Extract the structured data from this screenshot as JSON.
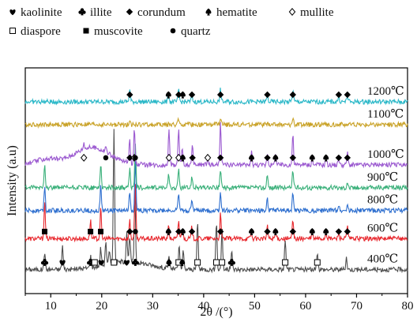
{
  "chart_data": {
    "type": "line",
    "xlabel": "2θ /(°)",
    "ylabel": "Intensity (a.u)",
    "xlim": [
      5,
      80
    ],
    "x_ticks": [
      10,
      20,
      30,
      40,
      50,
      60,
      70,
      80
    ],
    "legend": {
      "placement": "top",
      "entries": [
        {
          "symbol": "heart-marker",
          "label": "kaolinite"
        },
        {
          "symbol": "club-marker",
          "label": "illite"
        },
        {
          "symbol": "diamond-filled-marker",
          "label": "corundum"
        },
        {
          "symbol": "spade-marker",
          "label": "hematite"
        },
        {
          "symbol": "diamond-open-marker",
          "label": "mullite"
        },
        {
          "symbol": "square-open-marker",
          "label": "diaspore"
        },
        {
          "symbol": "square-filled-marker",
          "label": "muscovite"
        },
        {
          "symbol": "circle-filled-marker",
          "label": "quartz"
        }
      ]
    },
    "series": [
      {
        "name": "400℃",
        "color": "#4d4d4d",
        "baseline": 0.5,
        "peaks": [
          [
            8.8,
            3
          ],
          [
            12.3,
            4
          ],
          [
            17.8,
            2
          ],
          [
            19.8,
            3
          ],
          [
            20.8,
            4
          ],
          [
            21.5,
            2
          ],
          [
            22.4,
            22
          ],
          [
            24.9,
            5
          ],
          [
            25.5,
            4
          ],
          [
            26.5,
            11
          ],
          [
            33.2,
            2
          ],
          [
            35.2,
            4
          ],
          [
            36.0,
            3
          ],
          [
            38.8,
            8
          ],
          [
            42.5,
            8
          ],
          [
            43.6,
            7
          ],
          [
            45.5,
            3
          ],
          [
            56.0,
            5
          ],
          [
            62.3,
            3
          ],
          [
            68.0,
            2
          ]
        ]
      },
      {
        "name": "600℃",
        "color": "#e8282e",
        "baseline": 2.8,
        "peaks": [
          [
            8.8,
            6
          ],
          [
            17.8,
            3
          ],
          [
            19.8,
            5
          ],
          [
            25.5,
            3
          ],
          [
            26.6,
            9
          ],
          [
            33.1,
            2
          ],
          [
            35.1,
            3
          ],
          [
            35.8,
            2
          ],
          [
            37.7,
            2
          ],
          [
            43.3,
            4
          ],
          [
            49.3,
            1
          ],
          [
            52.5,
            2
          ],
          [
            54.1,
            1
          ],
          [
            57.5,
            3
          ],
          [
            61.3,
            1
          ],
          [
            64.0,
            1
          ],
          [
            66.5,
            1
          ],
          [
            68.2,
            2
          ]
        ]
      },
      {
        "name": "800℃",
        "color": "#2e6fcf",
        "baseline": 4.9,
        "peaks": [
          [
            8.8,
            4
          ],
          [
            19.8,
            4
          ],
          [
            25.5,
            3
          ],
          [
            26.6,
            8
          ],
          [
            35.1,
            3
          ],
          [
            37.7,
            2
          ],
          [
            43.3,
            3
          ],
          [
            52.5,
            2
          ],
          [
            57.5,
            3
          ],
          [
            66.5,
            1
          ],
          [
            68.2,
            1
          ]
        ]
      },
      {
        "name": "900℃",
        "color": "#3ab07a",
        "baseline": 6.6,
        "peaks": [
          [
            8.8,
            4
          ],
          [
            19.8,
            4
          ],
          [
            25.5,
            3
          ],
          [
            26.6,
            7
          ],
          [
            33.1,
            2
          ],
          [
            35.1,
            3
          ],
          [
            37.7,
            2
          ],
          [
            43.3,
            3
          ],
          [
            52.5,
            2
          ],
          [
            57.5,
            3
          ],
          [
            68.2,
            1
          ]
        ]
      },
      {
        "name": "1000℃",
        "color": "#9b59d0",
        "baseline": 8.3,
        "peaks": [
          [
            16.5,
            1
          ],
          [
            20.8,
            1
          ],
          [
            25.5,
            4
          ],
          [
            26.4,
            6
          ],
          [
            33.2,
            6
          ],
          [
            35.1,
            6
          ],
          [
            35.8,
            3
          ],
          [
            37.8,
            3
          ],
          [
            40.8,
            1
          ],
          [
            43.3,
            7
          ],
          [
            49.4,
            2
          ],
          [
            52.5,
            2
          ],
          [
            54.1,
            2
          ],
          [
            57.5,
            5
          ],
          [
            61.3,
            1
          ],
          [
            64.0,
            1
          ],
          [
            66.5,
            1
          ],
          [
            68.2,
            2
          ]
        ]
      },
      {
        "name": "1100℃",
        "color": "#c9a227",
        "baseline": 11.3,
        "peaks": [
          [
            25.5,
            1
          ],
          [
            35.1,
            1
          ],
          [
            43.3,
            1
          ],
          [
            57.5,
            1
          ]
        ]
      },
      {
        "name": "1200℃",
        "color": "#2bb8c8",
        "baseline": 13.0,
        "peaks": [
          [
            25.5,
            2
          ],
          [
            33.1,
            1
          ],
          [
            35.1,
            2
          ],
          [
            37.7,
            1
          ],
          [
            43.3,
            2
          ],
          [
            52.5,
            1
          ],
          [
            57.5,
            2
          ],
          [
            66.5,
            1
          ],
          [
            68.2,
            1
          ]
        ]
      }
    ],
    "temperature_labels": [
      "1200℃",
      "1100℃",
      "1000℃",
      "900℃",
      "800℃",
      "600℃",
      "400℃"
    ],
    "annotations": [
      {
        "series": "1200℃",
        "markers": [
          [
            25.5,
            "diamond-filled-marker"
          ],
          [
            33.1,
            "spade-marker"
          ],
          [
            35.1,
            "diamond-filled-marker"
          ],
          [
            35.9,
            "spade-marker"
          ],
          [
            37.7,
            "diamond-filled-marker"
          ],
          [
            43.3,
            "diamond-filled-marker"
          ],
          [
            52.5,
            "diamond-filled-marker"
          ],
          [
            57.5,
            "diamond-filled-marker"
          ],
          [
            66.5,
            "diamond-filled-marker"
          ],
          [
            68.2,
            "diamond-filled-marker"
          ]
        ]
      },
      {
        "series": "1000℃",
        "markers": [
          [
            16.5,
            "diamond-open-marker"
          ],
          [
            20.8,
            "circle-filled-marker"
          ],
          [
            25.5,
            "diamond-filled-marker"
          ],
          [
            26.4,
            "diamond-open-marker"
          ],
          [
            26.6,
            "circle-filled-marker"
          ],
          [
            33.2,
            "diamond-open-marker"
          ],
          [
            35.1,
            "diamond-open-marker"
          ],
          [
            35.9,
            "spade-marker"
          ],
          [
            37.8,
            "diamond-filled-marker"
          ],
          [
            40.8,
            "diamond-open-marker"
          ],
          [
            43.3,
            "diamond-filled-marker"
          ],
          [
            49.4,
            "spade-marker"
          ],
          [
            52.5,
            "diamond-filled-marker"
          ],
          [
            54.1,
            "spade-marker"
          ],
          [
            57.5,
            "diamond-filled-marker"
          ],
          [
            61.3,
            "spade-marker"
          ],
          [
            64.0,
            "spade-marker"
          ],
          [
            66.5,
            "diamond-filled-marker"
          ],
          [
            68.2,
            "diamond-filled-marker"
          ]
        ]
      },
      {
        "series": "600℃",
        "markers": [
          [
            8.8,
            "square-filled-marker"
          ],
          [
            17.8,
            "square-filled-marker"
          ],
          [
            19.8,
            "square-filled-marker"
          ],
          [
            25.5,
            "diamond-filled-marker"
          ],
          [
            26.6,
            "circle-filled-marker"
          ],
          [
            33.1,
            "spade-marker"
          ],
          [
            35.1,
            "diamond-filled-marker"
          ],
          [
            35.9,
            "spade-marker"
          ],
          [
            37.7,
            "diamond-filled-marker"
          ],
          [
            43.3,
            "diamond-filled-marker"
          ],
          [
            49.4,
            "spade-marker"
          ],
          [
            52.5,
            "diamond-filled-marker"
          ],
          [
            54.1,
            "spade-marker"
          ],
          [
            57.5,
            "diamond-filled-marker"
          ],
          [
            61.3,
            "spade-marker"
          ],
          [
            64.0,
            "spade-marker"
          ],
          [
            66.5,
            "diamond-filled-marker"
          ],
          [
            68.2,
            "diamond-filled-marker"
          ]
        ]
      },
      {
        "series": "400℃",
        "markers": [
          [
            8.8,
            "club-marker"
          ],
          [
            12.3,
            "heart-marker"
          ],
          [
            17.8,
            "club-marker"
          ],
          [
            18.6,
            "square-open-marker"
          ],
          [
            19.9,
            "heart-marker"
          ],
          [
            22.4,
            "square-open-marker"
          ],
          [
            24.9,
            "heart-marker"
          ],
          [
            26.6,
            "club-marker"
          ],
          [
            33.2,
            "spade-marker"
          ],
          [
            35.1,
            "square-open-marker"
          ],
          [
            35.8,
            "spade-marker"
          ],
          [
            38.8,
            "square-open-marker"
          ],
          [
            42.5,
            "square-open-marker"
          ],
          [
            43.6,
            "square-open-marker"
          ],
          [
            45.5,
            "club-marker"
          ],
          [
            56.0,
            "square-open-marker"
          ],
          [
            62.3,
            "square-open-marker"
          ]
        ]
      }
    ],
    "grid": false
  }
}
